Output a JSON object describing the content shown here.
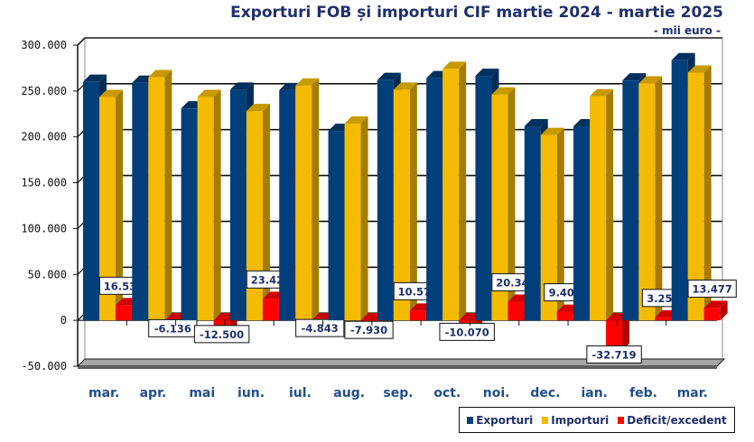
{
  "chart_data": {
    "type": "bar",
    "title": "Exporturi FOB și importuri CIF martie 2024 - martie 2025",
    "subtitle": "- mii euro -",
    "xlabel": "",
    "ylabel": "",
    "ylim": [
      -50000,
      300000
    ],
    "yticks": [
      -50000,
      0,
      50000,
      100000,
      150000,
      200000,
      250000,
      300000
    ],
    "ytick_labels": [
      "-50.000",
      "0",
      "50.000",
      "100.000",
      "150.000",
      "200.000",
      "250.000",
      "300.000"
    ],
    "grid": true,
    "legend_position": "bottom-right",
    "categories": [
      "mar.",
      "apr.",
      "mai",
      "iun.",
      "iul.",
      "aug.",
      "sep.",
      "oct.",
      "noi.",
      "dec.",
      "ian.",
      "feb.",
      "mar."
    ],
    "series": [
      {
        "name": "Exporturi",
        "color": "#003f7a",
        "values": [
          260000,
          259000,
          231000,
          251500,
          251000,
          206500,
          262000,
          264000,
          266500,
          211500,
          211500,
          261500,
          283500
        ]
      },
      {
        "name": "Importuri",
        "color": "#f5bb00",
        "values": [
          243461,
          265136,
          243500,
          228077,
          255843,
          214430,
          251423,
          274070,
          246159,
          202091,
          244219,
          258244,
          270023
        ]
      },
      {
        "name": "Deficit/excedent",
        "color": "#ff0000",
        "values": [
          16539,
          -6136,
          -12500,
          23423,
          -4843,
          -7930,
          10577,
          -10070,
          20341,
          9409,
          -32719,
          3256,
          13477
        ]
      }
    ],
    "data_labels": [
      "16.539",
      "-6.136",
      "-12.500",
      "23.423",
      "-4.843",
      "-7.930",
      "10.577",
      "-10.070",
      "20.341",
      "9.409",
      "-32.719",
      "3.256",
      "13.477"
    ]
  }
}
